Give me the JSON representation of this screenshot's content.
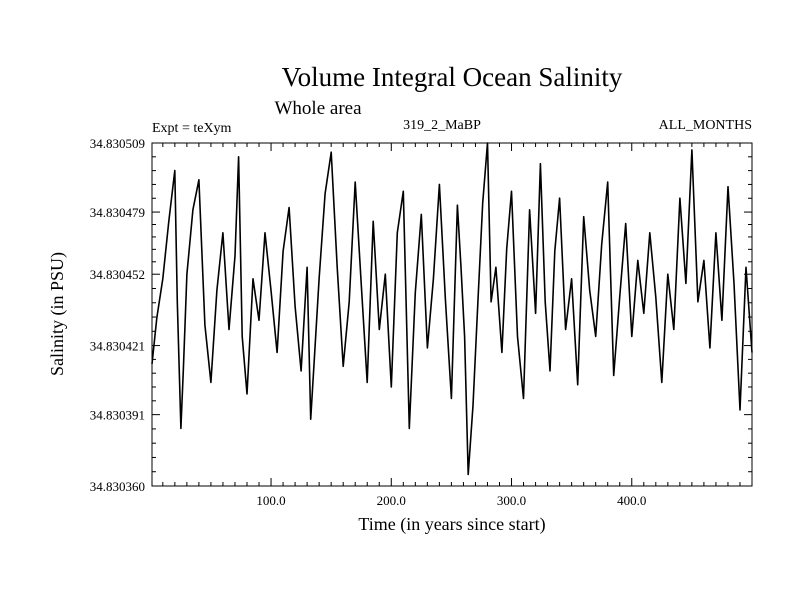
{
  "chart_data": {
    "type": "line",
    "title": "Volume Integral Ocean Salinity",
    "subtitle": "Whole area",
    "annotations": {
      "left": "Expt = teXym",
      "center": "319_2_MaBP",
      "right": "ALL_MONTHS"
    },
    "xlabel": "Time (in years since start)",
    "ylabel": "Salinity (in PSU)",
    "xlim": [
      1,
      500
    ],
    "ylim": [
      34.83036,
      34.830509
    ],
    "xticks": [
      {
        "value": 100,
        "label": "100.0"
      },
      {
        "value": 200,
        "label": "200.0"
      },
      {
        "value": 300,
        "label": "300.0"
      },
      {
        "value": 400,
        "label": "400.0"
      }
    ],
    "yticks": [
      {
        "value": 34.83036,
        "label": "34.830360"
      },
      {
        "value": 34.830391,
        "label": "34.830391"
      },
      {
        "value": 34.830421,
        "label": "34.830421"
      },
      {
        "value": 34.830452,
        "label": "34.830452"
      },
      {
        "value": 34.830479,
        "label": "34.830479"
      },
      {
        "value": 34.830509,
        "label": "34.830509"
      }
    ],
    "series": [
      {
        "x": [
          1,
          5,
          10,
          15,
          20,
          22,
          25,
          27,
          30,
          35,
          40,
          45,
          50,
          55,
          60,
          65,
          70,
          73,
          76,
          80,
          85,
          90,
          95,
          100,
          105,
          110,
          115,
          120,
          125,
          130,
          133,
          136,
          140,
          145,
          150,
          155,
          160,
          165,
          170,
          175,
          180,
          185,
          190,
          195,
          200,
          205,
          210,
          215,
          220,
          225,
          230,
          235,
          240,
          245,
          250,
          255,
          258,
          261,
          264,
          268,
          272,
          276,
          280,
          283,
          287,
          292,
          296,
          300,
          305,
          310,
          315,
          320,
          324,
          328,
          332,
          336,
          340,
          345,
          350,
          355,
          360,
          365,
          370,
          375,
          380,
          385,
          390,
          395,
          400,
          405,
          410,
          415,
          420,
          425,
          430,
          435,
          440,
          445,
          450,
          455,
          460,
          465,
          470,
          475,
          480,
          485,
          490,
          495,
          500
        ],
        "values": [
          34.830413,
          34.830433,
          34.83045,
          34.830475,
          34.830497,
          34.83044,
          34.830385,
          34.83041,
          34.830452,
          34.83048,
          34.830493,
          34.83043,
          34.830405,
          34.830445,
          34.83047,
          34.830428,
          34.83046,
          34.830503,
          34.830425,
          34.8304,
          34.83045,
          34.830432,
          34.83047,
          34.830445,
          34.830418,
          34.830462,
          34.830481,
          34.830438,
          34.83041,
          34.830455,
          34.830389,
          34.830415,
          34.83045,
          34.830487,
          34.830505,
          34.830455,
          34.830412,
          34.83044,
          34.830492,
          34.830448,
          34.830405,
          34.830475,
          34.830428,
          34.830452,
          34.830403,
          34.83047,
          34.830488,
          34.830385,
          34.830444,
          34.830478,
          34.83042,
          34.83045,
          34.830491,
          34.830441,
          34.830398,
          34.830482,
          34.830455,
          34.830425,
          34.830365,
          34.830395,
          34.83044,
          34.830483,
          34.830509,
          34.83044,
          34.830455,
          34.830418,
          34.830463,
          34.830488,
          34.830425,
          34.830398,
          34.83048,
          34.830435,
          34.8305,
          34.83044,
          34.83041,
          34.830462,
          34.830485,
          34.830428,
          34.83045,
          34.830404,
          34.830477,
          34.830445,
          34.830425,
          34.830465,
          34.830492,
          34.830408,
          34.830442,
          34.830474,
          34.830425,
          34.830458,
          34.830435,
          34.83047,
          34.830442,
          34.830405,
          34.830452,
          34.830428,
          34.830485,
          34.830448,
          34.830506,
          34.83044,
          34.830458,
          34.83042,
          34.83047,
          34.830432,
          34.83049,
          34.830448,
          34.830393,
          34.830455,
          34.830418
        ]
      }
    ]
  }
}
